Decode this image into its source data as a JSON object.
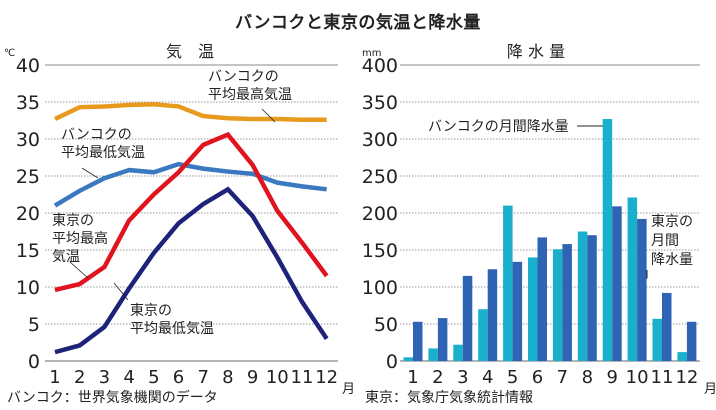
{
  "title": "バンコクと東京の気温と降水量",
  "chart_data": [
    {
      "type": "line",
      "title": "気　温",
      "ylabel": "℃",
      "xlabel": "月",
      "ylim": [
        0,
        40
      ],
      "yticks": [
        0,
        5,
        10,
        15,
        20,
        25,
        30,
        35,
        40
      ],
      "categories": [
        "1",
        "2",
        "3",
        "4",
        "5",
        "6",
        "7",
        "8",
        "9",
        "10",
        "11",
        "12"
      ],
      "grid": true,
      "series": [
        {
          "name": "バンコクの平均最高気温",
          "color": "#e89a1f",
          "values": [
            32.7,
            34.3,
            34.4,
            34.6,
            34.7,
            34.4,
            33.1,
            32.8,
            32.7,
            32.7,
            32.6,
            32.6
          ]
        },
        {
          "name": "バンコクの平均最低気温",
          "color": "#3a78c0",
          "values": [
            21.0,
            23.0,
            24.7,
            25.8,
            25.5,
            26.6,
            26.0,
            25.6,
            25.3,
            24.1,
            23.6,
            23.2
          ]
        },
        {
          "name": "東京の平均最高気温",
          "color": "#e0141e",
          "values": [
            9.6,
            10.4,
            12.7,
            19.0,
            22.5,
            25.5,
            29.2,
            30.6,
            26.5,
            20.3,
            16.0,
            11.5
          ]
        },
        {
          "name": "東京の平均最低気温",
          "color": "#1e237a",
          "values": [
            1.2,
            2.1,
            4.6,
            9.8,
            14.6,
            18.6,
            21.2,
            23.2,
            19.6,
            14.0,
            8.0,
            3.0
          ]
        }
      ],
      "annotations": [
        {
          "lines": [
            "バンコクの",
            "平均最高気温"
          ]
        },
        {
          "lines": [
            "バンコクの",
            "平均最低気温"
          ]
        },
        {
          "lines": [
            "東京の",
            "平均最高",
            "気温"
          ]
        },
        {
          "lines": [
            "東京の",
            "平均最低気温"
          ]
        }
      ],
      "source": "バンコク：世界気象機関のデータ"
    },
    {
      "type": "bar",
      "title": "降 水 量",
      "ylabel": "mm",
      "xlabel": "月",
      "ylim": [
        0,
        400
      ],
      "yticks": [
        0,
        50,
        100,
        150,
        200,
        250,
        300,
        350,
        400
      ],
      "categories": [
        "1",
        "2",
        "3",
        "4",
        "5",
        "6",
        "7",
        "8",
        "9",
        "10",
        "11",
        "12"
      ],
      "grid": true,
      "series": [
        {
          "name": "バンコクの月間降水量",
          "color": "#1ab0cc",
          "values": [
            5,
            17,
            22,
            70,
            210,
            140,
            151,
            175,
            327,
            221,
            57,
            12
          ]
        },
        {
          "name": "東京の月間降水量",
          "color": "#2f64b4",
          "values": [
            53,
            58,
            115,
            124,
            134,
            167,
            158,
            170,
            209,
            192,
            92,
            53
          ]
        }
      ],
      "annotations": [
        {
          "lines": [
            "バンコクの月間降水量"
          ]
        },
        {
          "lines": [
            "東京の",
            "月間",
            "降水量"
          ]
        }
      ],
      "source": "東京：気象庁気象統計情報"
    }
  ]
}
